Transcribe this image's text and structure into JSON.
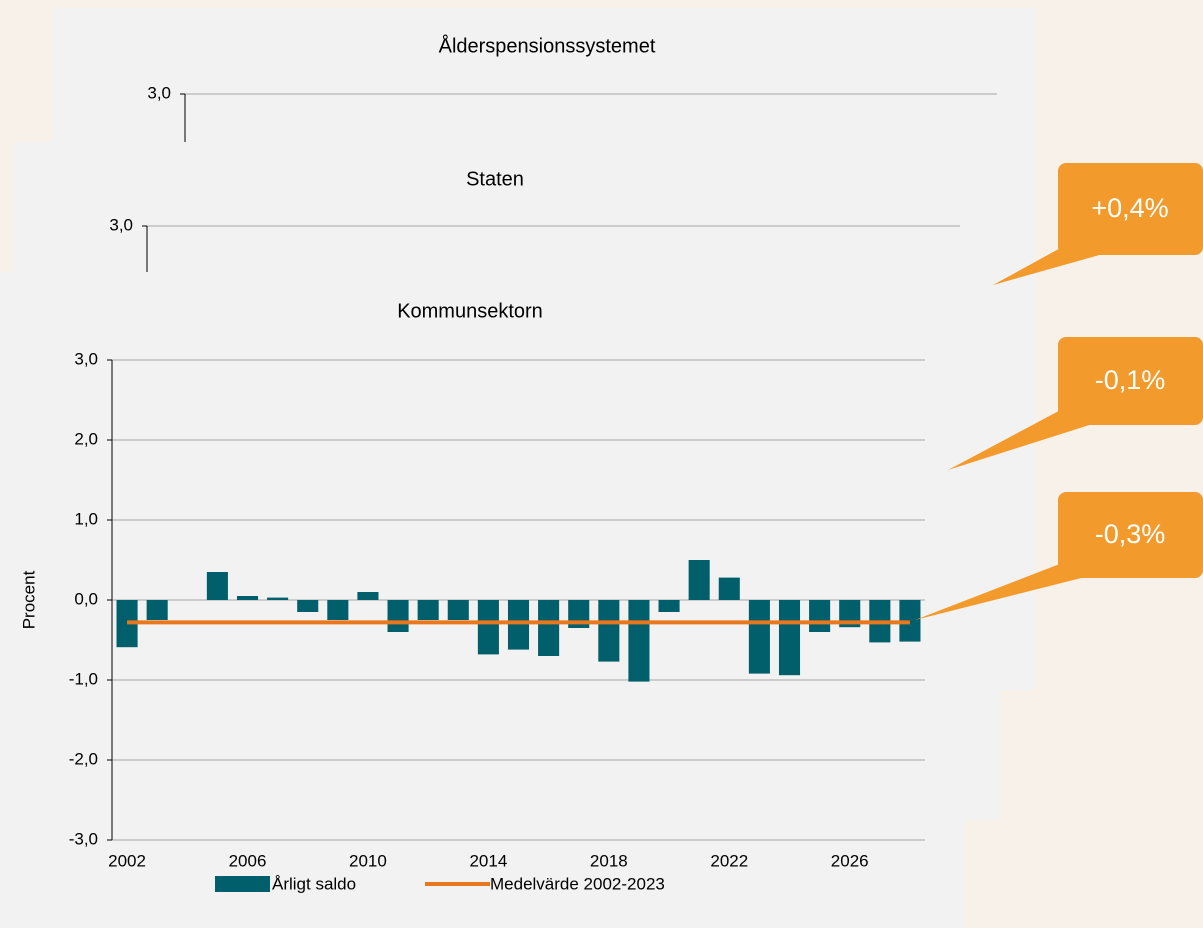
{
  "chart_data": [
    {
      "type": "bar",
      "title": "Ålderspensionssystemet",
      "ylim": [
        -3,
        3
      ],
      "yticks": [
        {
          "value": 3,
          "label": "3,0"
        }
      ]
    },
    {
      "type": "bar",
      "title": "Staten",
      "ylim": [
        -3,
        3
      ],
      "yticks": [
        {
          "value": 3,
          "label": "3,0"
        }
      ]
    },
    {
      "type": "bar",
      "title": "Kommunsektorn",
      "y_label": "Procent",
      "categories": [
        "2002",
        null,
        null,
        null,
        "2006",
        null,
        null,
        null,
        "2010",
        null,
        null,
        null,
        "2014",
        null,
        null,
        null,
        "2018",
        null,
        null,
        null,
        "2022",
        null,
        null,
        null,
        "2026",
        null,
        null
      ],
      "series": [
        {
          "name": "Årligt saldo",
          "color": "#005f6b",
          "values": [
            -0.59,
            -0.25,
            0,
            0.35,
            0.05,
            0.03,
            -0.15,
            -0.25,
            0.1,
            -0.4,
            -0.25,
            -0.25,
            -0.68,
            -0.62,
            -0.7,
            -0.35,
            -0.77,
            -1.02,
            -0.15,
            0.5,
            0.28,
            -0.92,
            -0.94,
            -0.4,
            -0.34,
            -0.53,
            -0.52
          ]
        },
        {
          "name": "Medelvärde 2002-2023",
          "type": "line",
          "color": "#e8771e",
          "values": [
            -0.28,
            -0.28,
            -0.28,
            -0.28,
            -0.28,
            -0.28,
            -0.28,
            -0.28,
            -0.28,
            -0.28,
            -0.28,
            -0.28,
            -0.28,
            -0.28,
            -0.28,
            -0.28,
            -0.28,
            -0.28,
            -0.28,
            -0.28,
            -0.28,
            -0.28,
            -0.28,
            -0.28,
            -0.28,
            -0.28,
            -0.28
          ]
        }
      ],
      "ylim": [
        -3,
        3
      ],
      "yticks": [
        {
          "value": 3,
          "label": "3,0"
        },
        {
          "value": 2,
          "label": "2,0"
        },
        {
          "value": 1,
          "label": "1,0"
        },
        {
          "value": 0,
          "label": "0,0"
        },
        {
          "value": -1,
          "label": "-1,0"
        },
        {
          "value": -2,
          "label": "-2,0"
        },
        {
          "value": -3,
          "label": "-3,0"
        }
      ],
      "grid": true
    }
  ],
  "annotations": [
    "+0,4%",
    "-0,1%",
    "-0,3%"
  ]
}
